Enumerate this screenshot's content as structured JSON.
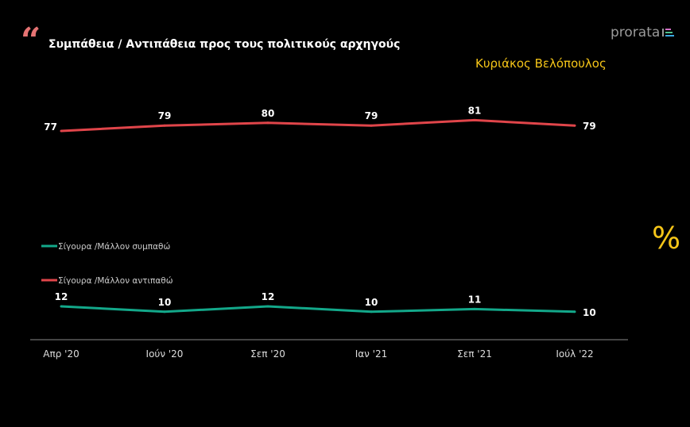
{
  "header": {
    "title": "Συμπάθεια / Αντιπάθεια προς τους πολιτικούς αρχηγούς",
    "subtitle": "Κυριάκος Βελόπουλος",
    "logo": "prorata",
    "quote_icon": "quote-mark-icon",
    "percent_symbol": "%"
  },
  "colors": {
    "red": "#e0454a",
    "green": "#13a88a",
    "accent": "#f5c518"
  },
  "chart_data": {
    "type": "line",
    "title": "Συμπάθεια / Αντιπάθεια προς τους πολιτικούς αρχηγούς",
    "categories": [
      "Απρ '20",
      "Ιούν '20",
      "Σεπ '20",
      "Ιαν '21",
      "Σεπ '21",
      "Ιούλ '22"
    ],
    "series": [
      {
        "name": "Σίγουρα /Μάλλον συμπαθώ",
        "color": "#13a88a",
        "values": [
          12,
          10,
          12,
          10,
          11,
          10
        ]
      },
      {
        "name": "Σίγουρα /Μάλλον αντιπαθώ",
        "color": "#e0454a",
        "values": [
          77,
          79,
          80,
          79,
          81,
          79
        ]
      }
    ],
    "legend": "left-middle",
    "grid": false,
    "ylim": [
      0,
      100
    ],
    "xlabel": "",
    "ylabel": ""
  }
}
